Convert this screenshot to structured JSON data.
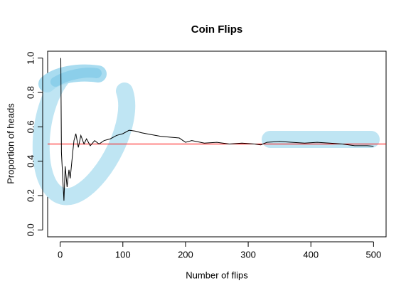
{
  "chart_data": {
    "type": "line",
    "title": "Coin Flips",
    "x_label": "Number of flips",
    "y_label": "Proportion of heads",
    "x": [
      1,
      2,
      6,
      8,
      11,
      14,
      16,
      20,
      22,
      25,
      29,
      33,
      38,
      42,
      48,
      55,
      62,
      70,
      80,
      90,
      100,
      110,
      120,
      130,
      145,
      160,
      175,
      190,
      200,
      210,
      230,
      250,
      270,
      290,
      310,
      320,
      330,
      350,
      370,
      390,
      410,
      430,
      450,
      470,
      490,
      500
    ],
    "values": [
      1,
      0.45,
      0.17,
      0.37,
      0.25,
      0.35,
      0.3,
      0.45,
      0.52,
      0.56,
      0.48,
      0.55,
      0.5,
      0.53,
      0.49,
      0.52,
      0.5,
      0.52,
      0.53,
      0.55,
      0.56,
      0.58,
      0.575,
      0.565,
      0.555,
      0.545,
      0.54,
      0.535,
      0.51,
      0.52,
      0.505,
      0.51,
      0.5,
      0.505,
      0.5,
      0.495,
      0.51,
      0.515,
      0.51,
      0.505,
      0.51,
      0.505,
      0.5,
      0.49,
      0.49,
      0.487
    ],
    "color": "#000000",
    "hline": {
      "value": 0.5,
      "color": "#ff0000"
    },
    "xlim": [
      -20,
      520
    ],
    "ylim": [
      -0.04,
      1.04
    ],
    "xticks": [
      0,
      100,
      200,
      300,
      400,
      500
    ],
    "yticks": [
      {
        "value": 0,
        "label": "0.0"
      },
      0.2,
      0.4,
      0.6,
      0.8,
      {
        "value": 1,
        "label": "1.0"
      }
    ]
  }
}
